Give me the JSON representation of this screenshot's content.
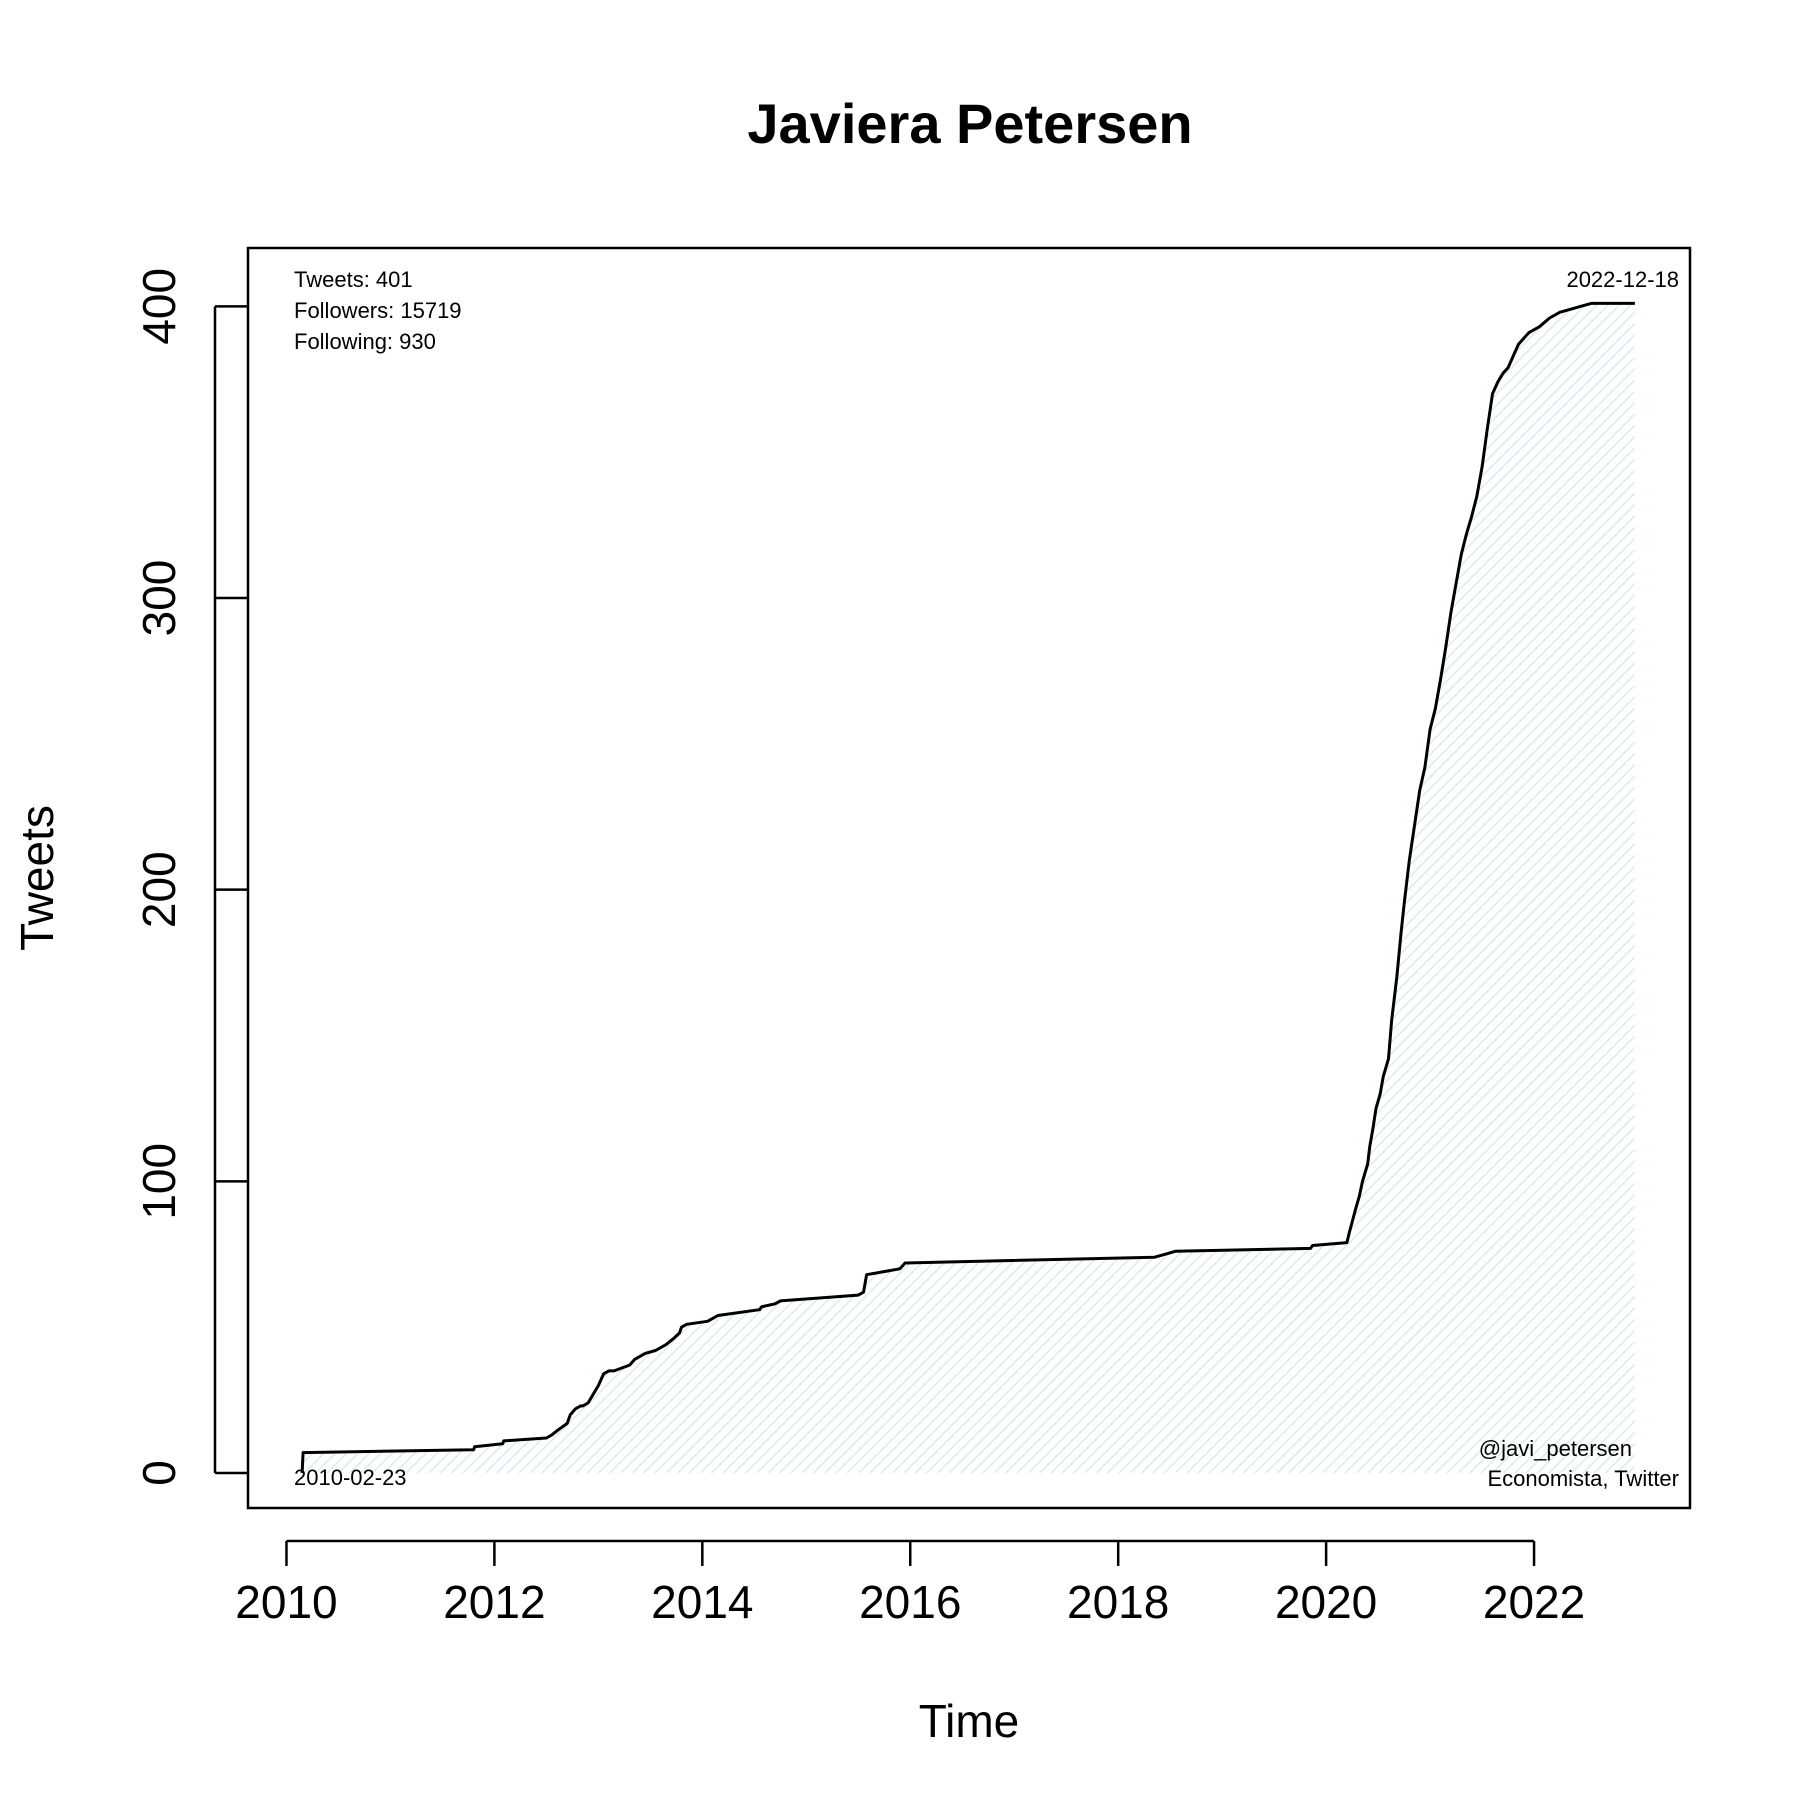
{
  "chart_data": {
    "type": "area",
    "title": "Javiera Petersen",
    "xlabel": "Time",
    "ylabel": "Tweets",
    "xlim": [
      2009.63,
      2023.5
    ],
    "ylim": [
      -12,
      420
    ],
    "xticks": [
      2010,
      2012,
      2014,
      2016,
      2018,
      2020,
      2022
    ],
    "xtick_labels": [
      "2010",
      "2012",
      "2014",
      "2016",
      "2018",
      "2020",
      "2022"
    ],
    "yticks": [
      0,
      100,
      200,
      300,
      400
    ],
    "ytick_labels": [
      "0",
      "100",
      "200",
      "300",
      "400"
    ],
    "grid": false,
    "fill_color": "#e6f2f5",
    "line_color": "#000000",
    "annotations": {
      "stats": [
        "Tweets: 401",
        "Followers: 15719",
        "Following: 930"
      ],
      "start_date": "2010-02-23",
      "end_date": "2022-12-18",
      "handle": "@javi_petersen",
      "bio": "Economista, Twitter"
    },
    "series": [
      {
        "x": [
          2010.15,
          2010.16,
          2011.8,
          2011.81,
          2012.08,
          2012.09,
          2012.5,
          2012.55,
          2012.62,
          2012.7,
          2012.73,
          2012.78,
          2012.83,
          2012.85,
          2012.9,
          2013.0,
          2013.05,
          2013.1,
          2013.15,
          2013.3,
          2013.35,
          2013.45,
          2013.55,
          2013.65,
          2013.72,
          2013.78,
          2013.8,
          2013.85,
          2014.05,
          2014.1,
          2014.15,
          2014.55,
          2014.57,
          2014.7,
          2014.75,
          2015.5,
          2015.55,
          2015.58,
          2015.9,
          2015.95,
          2018.35,
          2018.45,
          2018.55,
          2019.85,
          2019.87,
          2020.2,
          2020.22,
          2020.25,
          2020.28,
          2020.32,
          2020.35,
          2020.4,
          2020.42,
          2020.45,
          2020.48,
          2020.52,
          2020.55,
          2020.6,
          2020.63,
          2020.68,
          2020.72,
          2020.75,
          2020.8,
          2020.85,
          2020.9,
          2020.95,
          2021.0,
          2021.05,
          2021.1,
          2021.15,
          2021.2,
          2021.25,
          2021.3,
          2021.35,
          2021.4,
          2021.45,
          2021.5,
          2021.55,
          2021.6,
          2021.65,
          2021.7,
          2021.75,
          2021.8,
          2021.85,
          2021.9,
          2021.95,
          2022.05,
          2022.15,
          2022.25,
          2022.35,
          2022.45,
          2022.55,
          2022.65,
          2022.75,
          2022.85,
          2022.96,
          2022.97
        ],
        "y": [
          0,
          7,
          8,
          9,
          10,
          11,
          12,
          13,
          15,
          17,
          20,
          22,
          23,
          23,
          24,
          30,
          34,
          35,
          35,
          37,
          39,
          41,
          42,
          44,
          46,
          48,
          50,
          51,
          52,
          53,
          54,
          56,
          57,
          58,
          59,
          61,
          62,
          68,
          70,
          72,
          74,
          75,
          76,
          77,
          78,
          79,
          82,
          86,
          90,
          95,
          100,
          106,
          112,
          118,
          125,
          130,
          136,
          142,
          155,
          170,
          185,
          195,
          210,
          222,
          234,
          242,
          255,
          262,
          272,
          283,
          295,
          305,
          315,
          322,
          328,
          335,
          345,
          358,
          370,
          374,
          377,
          379,
          383,
          387,
          389,
          391,
          393,
          396,
          398,
          399,
          400,
          401,
          401,
          401,
          401,
          401,
          401
        ]
      }
    ]
  }
}
